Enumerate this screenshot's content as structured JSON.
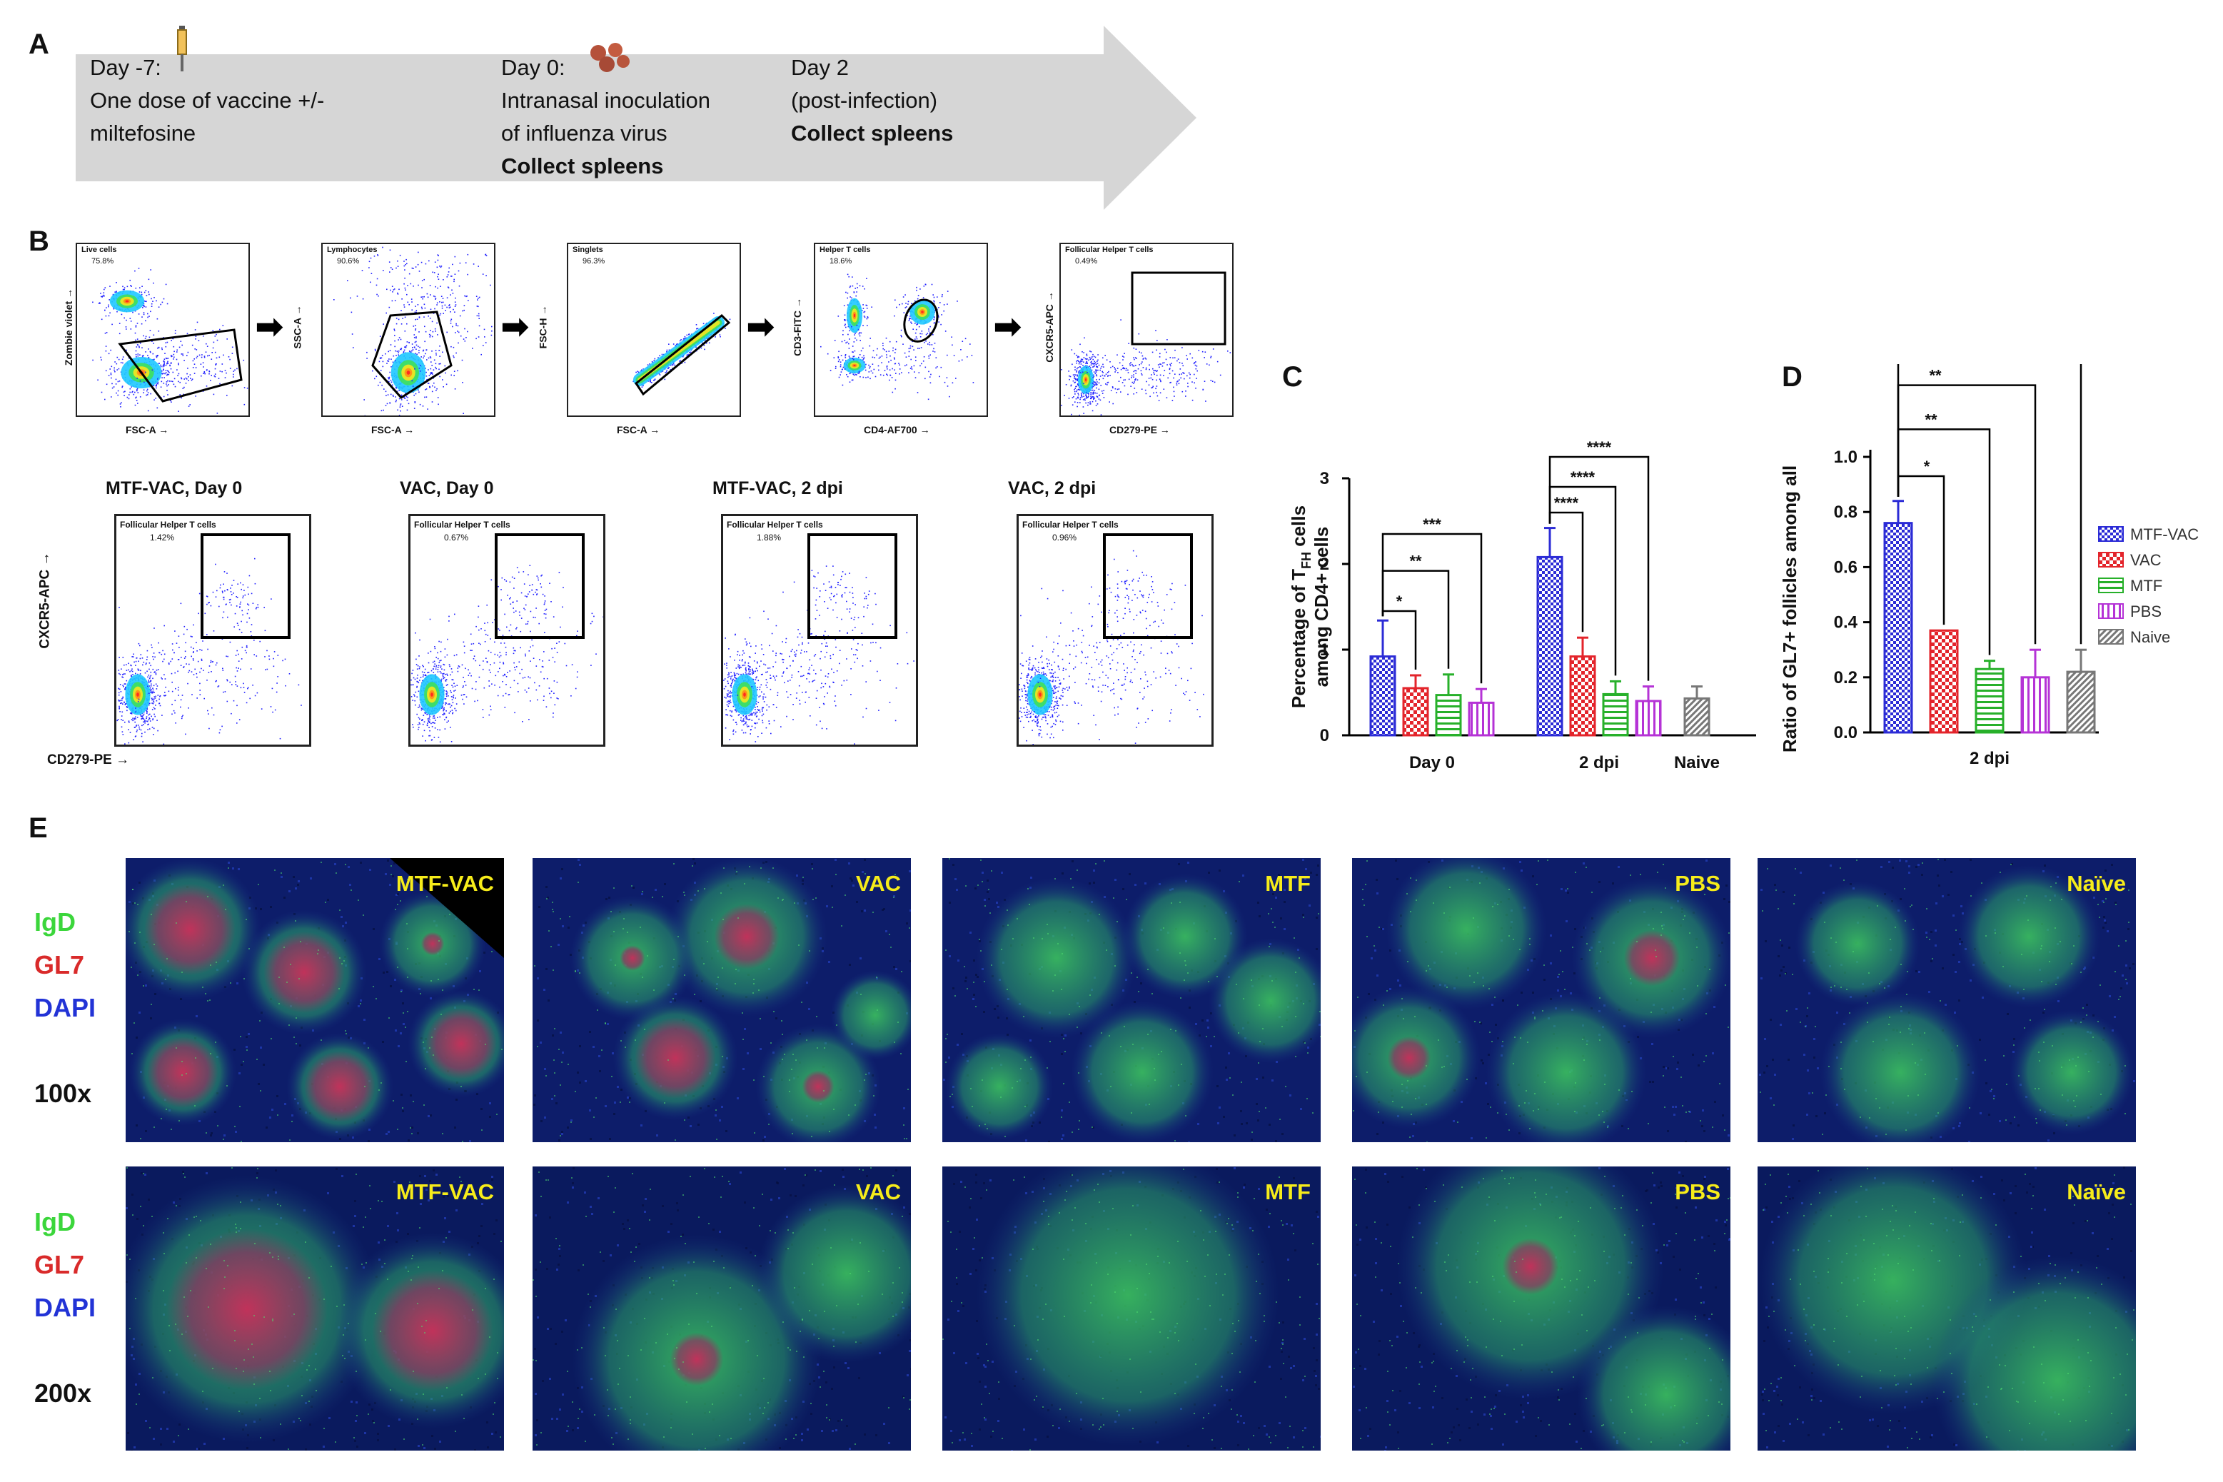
{
  "panel_labels": {
    "A": "A",
    "B": "B",
    "C": "C",
    "D": "D",
    "E": "E"
  },
  "timeline": {
    "day_minus7": {
      "day": "Day -7:",
      "line1": "One dose of vaccine +/-",
      "line2": "miltefosine"
    },
    "day0": {
      "day": "Day 0:",
      "line1": "Intranasal inoculation",
      "line2": "of influenza virus",
      "line3": "Collect spleens"
    },
    "day2": {
      "day": "Day 2",
      "line1": "(post-infection)",
      "line2": "Collect spleens"
    }
  },
  "flow_gating": [
    {
      "gate": "Live cells",
      "pct": "75.8%",
      "xlab": "FSC-A",
      "ylab": "Zombie violet"
    },
    {
      "gate": "Lymphocytes",
      "pct": "90.6%",
      "xlab": "FSC-A",
      "ylab": "SSC-A"
    },
    {
      "gate": "Singlets",
      "pct": "96.3%",
      "xlab": "FSC-A",
      "ylab": "FSC-H"
    },
    {
      "gate": "Helper T cells",
      "pct": "18.6%",
      "xlab": "CD4-AF700",
      "ylab": "CD3-FITC"
    },
    {
      "gate": "Follicular Helper T cells",
      "pct": "0.49%",
      "xlab": "CD279-PE",
      "ylab": "CXCR5-APC"
    }
  ],
  "flow_samples": [
    {
      "title": "MTF-VAC, Day 0",
      "gate": "Follicular Helper T cells",
      "pct": "1.42%"
    },
    {
      "title": "VAC, Day 0",
      "gate": "Follicular Helper T cells",
      "pct": "0.67%"
    },
    {
      "title": "MTF-VAC, 2 dpi",
      "gate": "Follicular Helper T cells",
      "pct": "1.88%"
    },
    {
      "title": "VAC, 2 dpi",
      "gate": "Follicular Helper T cells",
      "pct": "0.96%"
    }
  ],
  "flow_sample_axes": {
    "ylab": "CXCR5-APC",
    "xlab": "CD279-PE"
  },
  "arrow_sym": "→",
  "colors": {
    "MTF-VAC": "#2b2bd6",
    "VAC": "#e3242b",
    "MTF": "#27b02a",
    "PBS": "#b533d6",
    "Naive": "#777777"
  },
  "chart_data": [
    {
      "type": "bar",
      "id": "C",
      "ylabel_line1": "Percentage of T",
      "ylabel_sub": "FH",
      "ylabel_rest": " cells",
      "ylabel_line2": "among CD4+ cells",
      "ylim": [
        0,
        3
      ],
      "yticks": [
        "0",
        "1",
        "2",
        "3"
      ],
      "groups": [
        "Day 0",
        "2 dpi",
        "Naive"
      ],
      "series": [
        {
          "name": "MTF-VAC",
          "values": [
            0.92,
            2.08,
            null
          ],
          "err": [
            0.42,
            0.34,
            null
          ]
        },
        {
          "name": "VAC",
          "values": [
            0.55,
            0.92,
            null
          ],
          "err": [
            0.15,
            0.22,
            null
          ]
        },
        {
          "name": "MTF",
          "values": [
            0.47,
            0.48,
            null
          ],
          "err": [
            0.24,
            0.15,
            null
          ]
        },
        {
          "name": "PBS",
          "values": [
            0.38,
            0.4,
            null
          ],
          "err": [
            0.16,
            0.17,
            null
          ]
        },
        {
          "name": "Naive",
          "values": [
            null,
            null,
            0.43
          ],
          "err": [
            null,
            null,
            0.14
          ]
        }
      ],
      "significance": [
        {
          "group": 0,
          "to": 1,
          "label": "*"
        },
        {
          "group": 0,
          "to": 2,
          "label": "**"
        },
        {
          "group": 0,
          "to": 3,
          "label": "***"
        },
        {
          "group": 1,
          "to": 1,
          "label": "****"
        },
        {
          "group": 1,
          "to": 2,
          "label": "****"
        },
        {
          "group": 1,
          "to": 3,
          "label": "****"
        }
      ]
    },
    {
      "type": "bar",
      "id": "D",
      "ylabel": "Ratio of GL7+ follicles among all",
      "ylim": [
        0,
        1.0
      ],
      "yticks": [
        "0.0",
        "0.2",
        "0.4",
        "0.6",
        "0.8",
        "1.0"
      ],
      "groups": [
        "2 dpi"
      ],
      "series": [
        {
          "name": "MTF-VAC",
          "values": [
            0.76
          ],
          "err": [
            0.08
          ]
        },
        {
          "name": "VAC",
          "values": [
            0.37
          ],
          "err": [
            0.0
          ]
        },
        {
          "name": "MTF",
          "values": [
            0.23
          ],
          "err": [
            0.03
          ]
        },
        {
          "name": "PBS",
          "values": [
            0.2
          ],
          "err": [
            0.1
          ]
        },
        {
          "name": "Naive",
          "values": [
            0.22
          ],
          "err": [
            0.08
          ]
        }
      ],
      "significance": [
        {
          "to": 1,
          "label": "*"
        },
        {
          "to": 2,
          "label": "**"
        },
        {
          "to": 3,
          "label": "**"
        },
        {
          "to": 4,
          "label": "**"
        }
      ],
      "legend": [
        "MTF-VAC",
        "VAC",
        "MTF",
        "PBS",
        "Naive"
      ]
    }
  ],
  "micro_legend": {
    "igd": "IgD",
    "gl7": "GL7",
    "dapi": "DAPI",
    "mag100": "100x",
    "mag200": "200x"
  },
  "micro_rows": [
    [
      "MTF-VAC",
      "VAC",
      "MTF",
      "PBS",
      "Naïve"
    ],
    [
      "MTF-VAC",
      "VAC",
      "MTF",
      "PBS",
      "Naïve"
    ]
  ],
  "micro_colors": {
    "igd": "#3bd63b",
    "gl7": "#d92a2a",
    "dapi": "#2233d6",
    "mag": "#111111"
  }
}
